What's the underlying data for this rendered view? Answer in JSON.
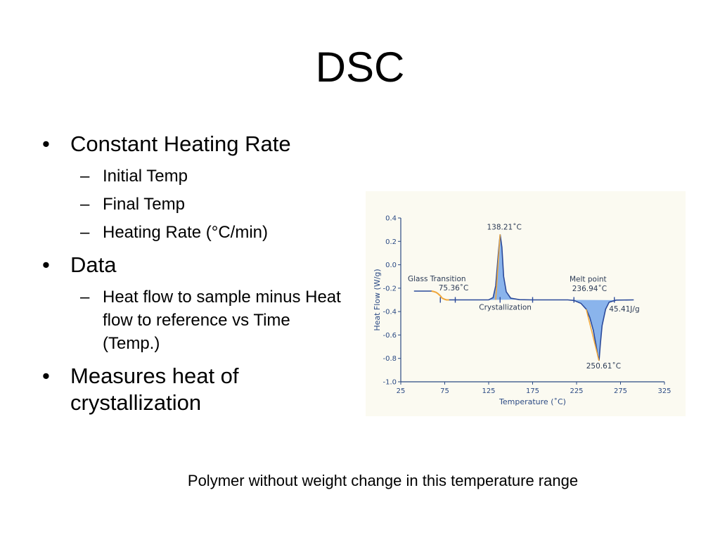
{
  "slide": {
    "title": "DSC",
    "bullets": [
      {
        "text": "Constant Heating Rate",
        "sub": [
          "Initial Temp",
          "Final Temp",
          "Heating Rate (°C/min)"
        ]
      },
      {
        "text": "Data",
        "sub": [
          "Heat flow to sample minus Heat flow to reference vs Time (Temp.)"
        ]
      },
      {
        "text": "Measures heat of crystallization",
        "sub": []
      }
    ],
    "caption": "Polymer without weight change in this temperature range",
    "bullet_mark": "•",
    "sub_mark": "–"
  },
  "chart_data": {
    "type": "line",
    "title": "",
    "xlabel": "Temperature (˚C)",
    "ylabel": "Heat Flow (W/g)",
    "xlim": [
      25,
      325
    ],
    "ylim": [
      -1.0,
      0.4
    ],
    "x_ticks": [
      "25",
      "75",
      "125",
      "175",
      "225",
      "275",
      "325"
    ],
    "y_ticks": [
      "0.4",
      "0.2",
      "0.0",
      "-0.2",
      "-0.4",
      "-0.6",
      "-0.8",
      "-1.0"
    ],
    "grid": false,
    "colors": {
      "curve": "#2b4a9a",
      "fill": "#8ab4ec",
      "highlight": "#f2a93b",
      "background": "#fbfaf1",
      "axis": "#2b4a84"
    },
    "series": [
      {
        "x": [
          40,
          60,
          62,
          65,
          67,
          70,
          72,
          75,
          77,
          80,
          90,
          110,
          125,
          130,
          133,
          136,
          138,
          140,
          142,
          145,
          150,
          160,
          175,
          200,
          215,
          222,
          230,
          236,
          240,
          244,
          247,
          249,
          250.6,
          252,
          254,
          258,
          262,
          270,
          290
        ],
        "y": [
          -0.225,
          -0.225,
          -0.228,
          -0.235,
          -0.245,
          -0.265,
          -0.285,
          -0.295,
          -0.3,
          -0.3,
          -0.3,
          -0.3,
          -0.3,
          -0.28,
          -0.18,
          0.1,
          0.26,
          0.15,
          -0.1,
          -0.23,
          -0.285,
          -0.298,
          -0.3,
          -0.3,
          -0.3,
          -0.305,
          -0.33,
          -0.38,
          -0.45,
          -0.56,
          -0.68,
          -0.77,
          -0.82,
          -0.68,
          -0.52,
          -0.38,
          -0.32,
          -0.302,
          -0.3
        ]
      }
    ],
    "annotations": [
      {
        "text": "Glass Transition",
        "x": 33,
        "y": -0.14
      },
      {
        "text": "75.36˚C",
        "x": 68,
        "y": -0.22
      },
      {
        "text": "138.21˚C",
        "x": 123,
        "y": 0.3
      },
      {
        "text": "Crystallization",
        "x": 114,
        "y": -0.385
      },
      {
        "text": "Melt point",
        "x": 217,
        "y": -0.145
      },
      {
        "text": "236.94˚C",
        "x": 220,
        "y": -0.225
      },
      {
        "text": "45.41J/g",
        "x": 262,
        "y": -0.4
      },
      {
        "text": "250.61˚C",
        "x": 236,
        "y": -0.885
      }
    ]
  }
}
